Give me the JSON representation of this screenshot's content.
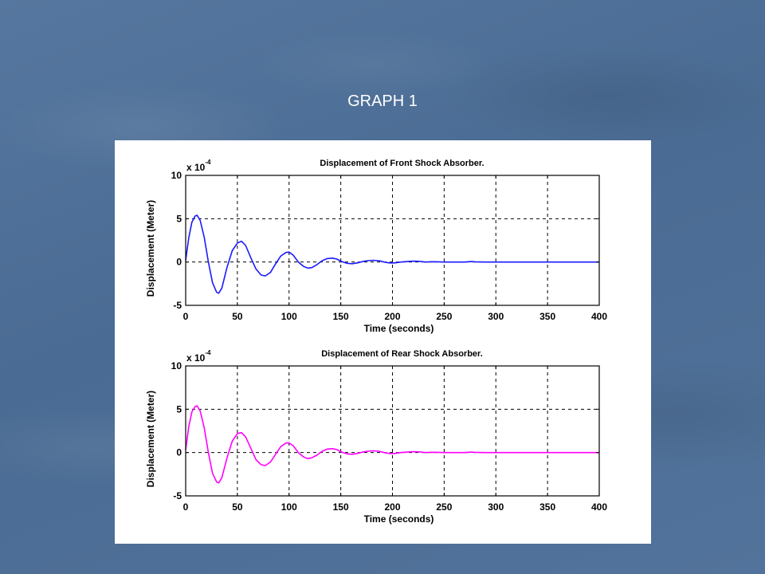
{
  "slide": {
    "title": "GRAPH 1"
  },
  "chart_data": [
    {
      "type": "line",
      "title": "Displacement of Front Shock Absorber.",
      "xlabel": "Time (seconds)",
      "ylabel": "Displacement (Meter)",
      "y_multiplier": "x 10",
      "y_multiplier_exp": "-4",
      "xlim": [
        0,
        400
      ],
      "ylim": [
        -5,
        10
      ],
      "x_ticks": [
        0,
        50,
        100,
        150,
        200,
        250,
        300,
        350,
        400
      ],
      "y_ticks": [
        -5,
        0,
        5,
        10
      ],
      "grid": true,
      "series": [
        {
          "color": "#1a1aff",
          "x": [
            0,
            3,
            6,
            9,
            11,
            14,
            18,
            22,
            26,
            30,
            32,
            35,
            40,
            45,
            50,
            54,
            58,
            63,
            68,
            73,
            77,
            82,
            87,
            92,
            97,
            100,
            104,
            109,
            114,
            118,
            122,
            127,
            132,
            137,
            142,
            146,
            151,
            156,
            161,
            166,
            171,
            176,
            181,
            187,
            192,
            197,
            202,
            208,
            214,
            220,
            226,
            232,
            238,
            244,
            250,
            260,
            270,
            276,
            280,
            290,
            300,
            320,
            340,
            360,
            380,
            400
          ],
          "y": [
            0.2,
            2.8,
            4.6,
            5.3,
            5.4,
            4.8,
            2.8,
            0.0,
            -2.4,
            -3.5,
            -3.6,
            -3.0,
            -0.6,
            1.3,
            2.2,
            2.4,
            1.9,
            0.5,
            -0.8,
            -1.5,
            -1.6,
            -1.2,
            -0.2,
            0.7,
            1.1,
            1.15,
            0.8,
            0.0,
            -0.5,
            -0.7,
            -0.65,
            -0.3,
            0.15,
            0.4,
            0.45,
            0.35,
            0.05,
            -0.15,
            -0.2,
            -0.1,
            0.05,
            0.15,
            0.2,
            0.15,
            0.0,
            -0.1,
            -0.1,
            0.0,
            0.05,
            0.1,
            0.08,
            0.0,
            0.03,
            0.02,
            0.0,
            0.0,
            0.0,
            0.05,
            0.02,
            0.0,
            0.0,
            0.0,
            0.0,
            0.0,
            0.0,
            0.0
          ]
        }
      ]
    },
    {
      "type": "line",
      "title": "Displacement of Rear Shock Absorber.",
      "xlabel": "Time (seconds)",
      "ylabel": "Displacement (Meter)",
      "y_multiplier": "x 10",
      "y_multiplier_exp": "-4",
      "xlim": [
        0,
        400
      ],
      "ylim": [
        -5,
        10
      ],
      "x_ticks": [
        0,
        50,
        100,
        150,
        200,
        250,
        300,
        350,
        400
      ],
      "y_ticks": [
        -5,
        0,
        5,
        10
      ],
      "grid": true,
      "series": [
        {
          "color": "#ff00ff",
          "x": [
            0,
            3,
            6,
            9,
            11,
            14,
            18,
            22,
            26,
            30,
            32,
            35,
            40,
            45,
            50,
            54,
            58,
            63,
            68,
            73,
            77,
            82,
            87,
            92,
            97,
            100,
            104,
            109,
            114,
            118,
            122,
            127,
            132,
            137,
            142,
            146,
            151,
            156,
            161,
            166,
            171,
            176,
            181,
            187,
            192,
            197,
            202,
            208,
            214,
            220,
            226,
            232,
            238,
            244,
            250,
            260,
            270,
            276,
            280,
            290,
            300,
            320,
            340,
            360,
            380,
            400
          ],
          "y": [
            0.3,
            3.0,
            4.7,
            5.3,
            5.4,
            4.8,
            2.8,
            0.0,
            -2.4,
            -3.4,
            -3.5,
            -2.9,
            -0.6,
            1.3,
            2.2,
            2.3,
            1.8,
            0.5,
            -0.8,
            -1.4,
            -1.5,
            -1.1,
            -0.2,
            0.7,
            1.1,
            1.1,
            0.8,
            0.0,
            -0.5,
            -0.7,
            -0.6,
            -0.3,
            0.15,
            0.4,
            0.45,
            0.35,
            0.05,
            -0.15,
            -0.2,
            -0.1,
            0.05,
            0.15,
            0.2,
            0.15,
            0.0,
            -0.1,
            -0.1,
            0.0,
            0.05,
            0.1,
            0.08,
            0.0,
            0.03,
            0.02,
            0.0,
            0.0,
            0.0,
            0.05,
            0.02,
            0.0,
            0.0,
            0.0,
            0.0,
            0.0,
            0.0,
            0.0
          ]
        }
      ]
    }
  ]
}
